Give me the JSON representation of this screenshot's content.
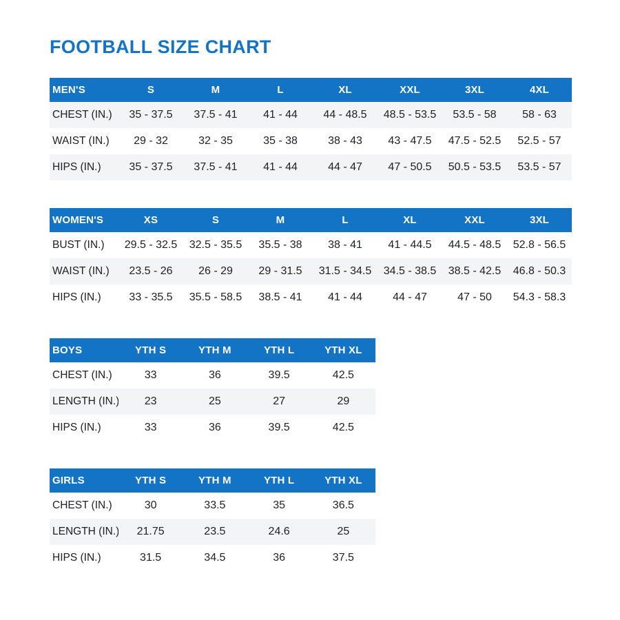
{
  "page": {
    "title": "FOOTBALL SIZE CHART"
  },
  "colors": {
    "accent": "#1373c5",
    "stripe": "#f3f4f6",
    "header_text": "#ffffff",
    "body_text": "#202124"
  },
  "tables": [
    {
      "id": "mens",
      "label": "MEN'S",
      "columns": [
        "S",
        "M",
        "L",
        "XL",
        "XXL",
        "3XL",
        "4XL"
      ],
      "striped_rows": [
        0,
        2
      ],
      "rows": [
        {
          "label": "CHEST (IN.)",
          "values": [
            "35 - 37.5",
            "37.5 - 41",
            "41 - 44",
            "44 - 48.5",
            "48.5 - 53.5",
            "53.5 - 58",
            "58 - 63"
          ]
        },
        {
          "label": "WAIST (IN.)",
          "values": [
            "29 - 32",
            "32 - 35",
            "35 - 38",
            "38 - 43",
            "43 - 47.5",
            "47.5 - 52.5",
            "52.5 - 57"
          ]
        },
        {
          "label": "HIPS (IN.)",
          "values": [
            "35 - 37.5",
            "37.5 - 41",
            "41 - 44",
            "44 - 47",
            "47 - 50.5",
            "50.5 - 53.5",
            "53.5 - 57"
          ]
        }
      ]
    },
    {
      "id": "womens",
      "label": "WOMEN'S",
      "columns": [
        "XS",
        "S",
        "M",
        "L",
        "XL",
        "XXL",
        "3XL"
      ],
      "striped_rows": [
        1
      ],
      "rows": [
        {
          "label": "BUST (IN.)",
          "values": [
            "29.5 - 32.5",
            "32.5 - 35.5",
            "35.5 - 38",
            "38 - 41",
            "41 - 44.5",
            "44.5 - 48.5",
            "52.8 - 56.5"
          ]
        },
        {
          "label": "WAIST (IN.)",
          "values": [
            "23.5 - 26",
            "26 - 29",
            "29 - 31.5",
            "31.5 - 34.5",
            "34.5 - 38.5",
            "38.5 - 42.5",
            "46.8 - 50.3"
          ]
        },
        {
          "label": "HIPS (IN.)",
          "values": [
            "33 - 35.5",
            "35.5 - 58.5",
            "38.5 - 41",
            "41 - 44",
            "44 - 47",
            "47 - 50",
            "54.3 - 58.3"
          ]
        }
      ]
    },
    {
      "id": "boys",
      "label": "BOYS",
      "columns": [
        "YTH S",
        "YTH M",
        "YTH L",
        "YTH XL"
      ],
      "striped_rows": [
        1
      ],
      "rows": [
        {
          "label": "CHEST (IN.)",
          "values": [
            "33",
            "36",
            "39.5",
            "42.5"
          ]
        },
        {
          "label": "LENGTH (IN.)",
          "values": [
            "23",
            "25",
            "27",
            "29"
          ]
        },
        {
          "label": "HIPS (IN.)",
          "values": [
            "33",
            "36",
            "39.5",
            "42.5"
          ]
        }
      ]
    },
    {
      "id": "girls",
      "label": "GIRLS",
      "columns": [
        "YTH S",
        "YTH M",
        "YTH L",
        "YTH XL"
      ],
      "striped_rows": [
        1
      ],
      "rows": [
        {
          "label": "CHEST (IN.)",
          "values": [
            "30",
            "33.5",
            "35",
            "36.5"
          ]
        },
        {
          "label": "LENGTH (IN.)",
          "values": [
            "21.75",
            "23.5",
            "24.6",
            "25"
          ]
        },
        {
          "label": "HIPS (IN.)",
          "values": [
            "31.5",
            "34.5",
            "36",
            "37.5"
          ]
        }
      ]
    }
  ]
}
